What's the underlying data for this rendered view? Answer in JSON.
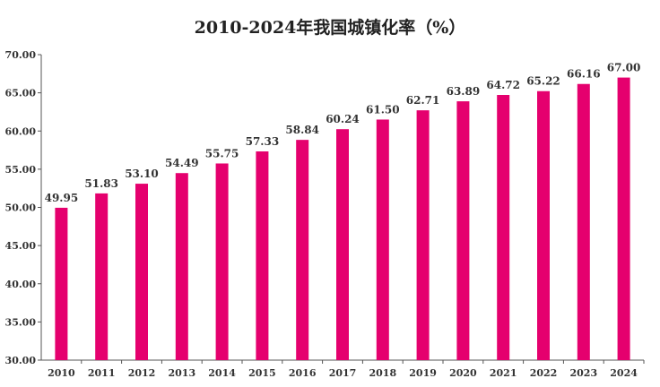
{
  "chart_data": {
    "type": "bar",
    "title": "2010-2024年我国城镇化率（%）",
    "xlabel": "",
    "ylabel": "",
    "categories": [
      "2010",
      "2011",
      "2012",
      "2013",
      "2014",
      "2015",
      "2016",
      "2017",
      "2018",
      "2019",
      "2020",
      "2021",
      "2022",
      "2023",
      "2024"
    ],
    "values": [
      49.95,
      51.83,
      53.1,
      54.49,
      55.75,
      57.33,
      58.84,
      60.24,
      61.5,
      62.71,
      63.89,
      64.72,
      65.22,
      66.16,
      67.0
    ],
    "data_labels": [
      "49.95",
      "51.83",
      "53.10",
      "54.49",
      "55.75",
      "57.33",
      "58.84",
      "60.24",
      "61.50",
      "62.71",
      "63.89",
      "64.72",
      "65.22",
      "66.16",
      "67.00"
    ],
    "ylim": [
      30,
      70
    ],
    "yticks": [
      "30.00",
      "35.00",
      "40.00",
      "45.00",
      "50.00",
      "55.00",
      "60.00",
      "65.00",
      "70.00"
    ],
    "grid": false,
    "legend": "none",
    "bar_color": "#e5006e"
  }
}
